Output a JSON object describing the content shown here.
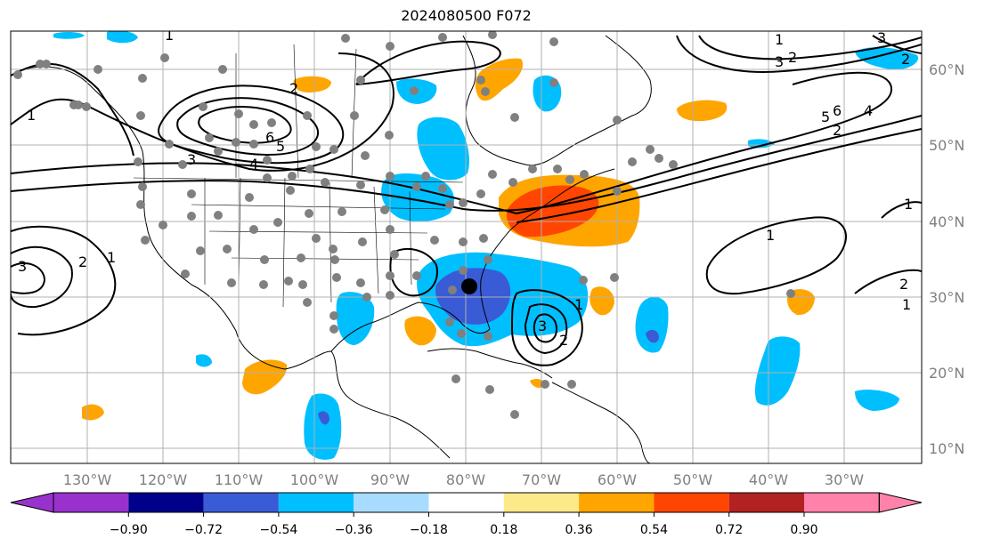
{
  "title": "2024080500 F072",
  "map": {
    "lon_labels": [
      "130°W",
      "120°W",
      "110°W",
      "100°W",
      "90°W",
      "80°W",
      "70°W",
      "60°W",
      "50°W",
      "40°W",
      "30°W"
    ],
    "lat_labels": [
      "60°N",
      "50°N",
      "40°N",
      "30°N",
      "20°N",
      "10°N"
    ],
    "contour_labels": [
      "1",
      "2",
      "3",
      "4",
      "5",
      "6",
      "1",
      "2",
      "3",
      "1",
      "2",
      "3",
      "6",
      "5",
      "4",
      "2",
      "1",
      "1",
      "1",
      "2",
      "1",
      "2",
      "3",
      "1",
      "2",
      "3"
    ]
  },
  "colorbar": {
    "labels": [
      "−0.90",
      "−0.72",
      "−0.54",
      "−0.36",
      "−0.18",
      "0.18",
      "0.36",
      "0.54",
      "0.72",
      "0.90"
    ],
    "colors": [
      "#9932cc",
      "#00008b",
      "#3a5bd6",
      "#00bfff",
      "#a8dcff",
      "#ffffff",
      "#fce98a",
      "#ffa500",
      "#ff4500",
      "#b22222",
      "#ff82ab"
    ]
  },
  "colors": {
    "gridline": "#b0b0b0",
    "station_marker": "#808080",
    "center_marker": "#000000",
    "contour": "#000000"
  }
}
